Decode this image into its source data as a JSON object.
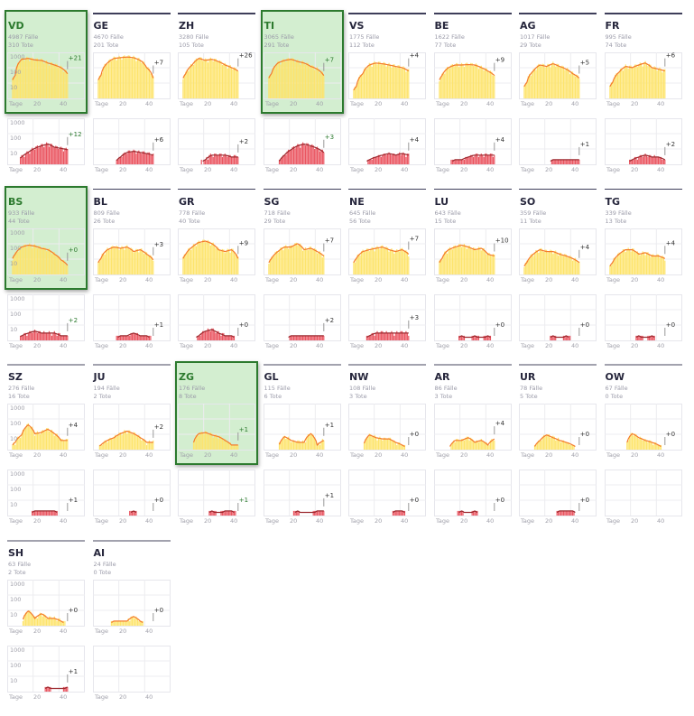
{
  "labels": {
    "x_axis": "Tage",
    "x_ticks": [
      "20",
      "40"
    ],
    "y_ticks": [
      "1000",
      "100",
      "10"
    ]
  },
  "colors": {
    "case_bar": "#fde46c",
    "case_line": "#f47a2c",
    "death_bar": "#ea5560",
    "death_line": "#9c2b30",
    "highlight_bg": "#d3eed0",
    "highlight_border": "#2c7a2e"
  },
  "chart_data": {
    "type": "bar",
    "x_axis": {
      "label": "Tage",
      "ticks": [
        20,
        40
      ]
    },
    "y_axis": {
      "scale": "log",
      "ticks": [
        10,
        100,
        1000
      ]
    },
    "sample_days": [
      4,
      9,
      14,
      19,
      24,
      29,
      34,
      39,
      44
    ],
    "cantons": [
      {
        "code": "VD",
        "cases_total": "4987 Fälle",
        "deaths_total": "310 Tote",
        "highlight": true,
        "cases_delta": "+21",
        "deaths_delta": "+12",
        "cases": [
          30,
          350,
          400,
          320,
          300,
          200,
          150,
          100,
          40
        ],
        "deaths": [
          0,
          2,
          5,
          10,
          15,
          20,
          12,
          10,
          8
        ]
      },
      {
        "code": "GE",
        "cases_total": "4670 Fälle",
        "deaths_total": "201 Tote",
        "cases_delta": "+7",
        "deaths_delta": "+6",
        "cases": [
          30,
          200,
          400,
          450,
          500,
          450,
          300,
          100,
          20
        ],
        "deaths": [
          0,
          0,
          0,
          2,
          5,
          6,
          5,
          4,
          3
        ]
      },
      {
        "code": "ZH",
        "cases_total": "3280 Fälle",
        "deaths_total": "105 Tote",
        "cases_delta": "+26",
        "deaths_delta": "+2",
        "cases": [
          40,
          150,
          400,
          300,
          350,
          250,
          150,
          100,
          60
        ],
        "deaths": [
          0,
          0,
          0,
          1,
          3,
          3,
          3,
          2,
          2
        ]
      },
      {
        "code": "TI",
        "cases_total": "3065 Fälle",
        "deaths_total": "291 Tote",
        "highlight": true,
        "cases_delta": "+7",
        "deaths_delta": "+3",
        "cases": [
          40,
          200,
          300,
          350,
          250,
          200,
          120,
          80,
          30
        ],
        "deaths": [
          0,
          0,
          3,
          8,
          15,
          20,
          15,
          10,
          5
        ]
      },
      {
        "code": "VS",
        "cases_total": "1775 Fälle",
        "deaths_total": "112 Tote",
        "cases_delta": "+4",
        "deaths_delta": "+4",
        "cases": [
          5,
          40,
          150,
          200,
          180,
          150,
          120,
          100,
          60
        ],
        "deaths": [
          0,
          0,
          1,
          2,
          3,
          4,
          3,
          4,
          3
        ]
      },
      {
        "code": "BE",
        "cases_total": "1622 Fälle",
        "deaths_total": "77 Tote",
        "cases_delta": "+9",
        "deaths_delta": "+4",
        "cases": [
          30,
          100,
          150,
          150,
          160,
          150,
          100,
          60,
          30
        ],
        "deaths": [
          0,
          0,
          1,
          1,
          2,
          3,
          3,
          3,
          3
        ]
      },
      {
        "code": "AG",
        "cases_total": "1017 Fälle",
        "deaths_total": "29 Tote",
        "cases_delta": "+5",
        "deaths_delta": "+1",
        "cases": [
          10,
          60,
          150,
          120,
          180,
          120,
          80,
          40,
          20
        ],
        "deaths": [
          0,
          0,
          0,
          0,
          1,
          1,
          1,
          1,
          1
        ]
      },
      {
        "code": "FR",
        "cases_total": "995 Fälle",
        "deaths_total": "74 Tote",
        "cases_delta": "+6",
        "deaths_delta": "+2",
        "cases": [
          10,
          50,
          120,
          100,
          150,
          200,
          100,
          80,
          60
        ],
        "deaths": [
          0,
          0,
          0,
          1,
          2,
          3,
          2,
          2,
          1
        ]
      },
      {
        "code": "BS",
        "cases_total": "933 Fälle",
        "deaths_total": "44 Tote",
        "highlight": true,
        "cases_delta": "+0",
        "deaths_delta": "+2",
        "cases": [
          20,
          60,
          80,
          70,
          50,
          40,
          20,
          8,
          3
        ],
        "deaths": [
          0,
          1,
          2,
          3,
          2,
          2,
          2,
          1,
          1
        ]
      },
      {
        "code": "BL",
        "cases_total": "809 Fälle",
        "deaths_total": "26 Tote",
        "cases_delta": "+3",
        "deaths_delta": "+1",
        "cases": [
          10,
          40,
          60,
          50,
          60,
          30,
          40,
          20,
          8
        ],
        "deaths": [
          0,
          0,
          0,
          1,
          1,
          2,
          1,
          1,
          0
        ]
      },
      {
        "code": "GR",
        "cases_total": "778 Fälle",
        "deaths_total": "40 Tote",
        "cases_delta": "+9",
        "deaths_delta": "+0",
        "cases": [
          20,
          60,
          120,
          150,
          100,
          40,
          30,
          40,
          10
        ],
        "deaths": [
          0,
          0,
          1,
          3,
          4,
          2,
          1,
          1,
          0
        ]
      },
      {
        "code": "SG",
        "cases_total": "718 Fälle",
        "deaths_total": "29 Tote",
        "cases_delta": "+7",
        "deaths_delta": "+2",
        "cases": [
          10,
          30,
          60,
          60,
          100,
          40,
          50,
          30,
          15
        ],
        "deaths": [
          0,
          0,
          0,
          1,
          1,
          1,
          1,
          1,
          1
        ]
      },
      {
        "code": "NE",
        "cases_total": "645 Fälle",
        "deaths_total": "56 Tote",
        "cases_delta": "+7",
        "deaths_delta": "+3",
        "cases": [
          10,
          30,
          40,
          50,
          60,
          40,
          30,
          40,
          20
        ],
        "deaths": [
          0,
          0,
          1,
          2,
          2,
          2,
          2,
          2,
          2
        ]
      },
      {
        "code": "LU",
        "cases_total": "643 Fälle",
        "deaths_total": "15 Tote",
        "cases_delta": "+10",
        "deaths_delta": "+0",
        "cases": [
          10,
          40,
          60,
          80,
          60,
          40,
          50,
          20,
          15
        ],
        "deaths": [
          0,
          0,
          0,
          1,
          0,
          1,
          0,
          1,
          0
        ]
      },
      {
        "code": "SO",
        "cases_total": "359 Fälle",
        "deaths_total": "11 Tote",
        "cases_delta": "+4",
        "deaths_delta": "+0",
        "cases": [
          5,
          20,
          40,
          30,
          30,
          20,
          15,
          10,
          5
        ],
        "deaths": [
          0,
          0,
          0,
          0,
          1,
          0,
          1,
          0,
          0
        ]
      },
      {
        "code": "TG",
        "cases_total": "339 Fälle",
        "deaths_total": "13 Tote",
        "cases_delta": "+4",
        "deaths_delta": "+0",
        "cases": [
          5,
          20,
          40,
          40,
          20,
          25,
          15,
          15,
          10
        ],
        "deaths": [
          0,
          0,
          0,
          0,
          1,
          0,
          1,
          0,
          0
        ]
      },
      {
        "code": "SZ",
        "cases_total": "276 Fälle",
        "deaths_total": "16 Tote",
        "cases_delta": "+4",
        "deaths_delta": "+1",
        "cases": [
          2,
          8,
          40,
          10,
          12,
          20,
          10,
          3,
          3
        ],
        "deaths": [
          0,
          0,
          0,
          1,
          1,
          1,
          1,
          0,
          0
        ]
      },
      {
        "code": "JU",
        "cases_total": "194 Fälle",
        "deaths_total": "2 Tote",
        "cases_delta": "+2",
        "deaths_delta": "+0",
        "cases": [
          1,
          3,
          5,
          10,
          15,
          10,
          5,
          2,
          2
        ],
        "deaths": [
          0,
          0,
          0,
          0,
          0,
          1,
          0,
          0,
          0
        ]
      },
      {
        "code": "ZG",
        "cases_total": "176 Fälle",
        "deaths_total": "8 Tote",
        "highlight": true,
        "cases_delta": "+1",
        "deaths_delta": "+1",
        "cases": [
          0,
          0,
          10,
          12,
          8,
          6,
          3,
          1,
          1
        ],
        "deaths": [
          0,
          0,
          0,
          0,
          1,
          0,
          1,
          1,
          0
        ]
      },
      {
        "code": "GL",
        "cases_total": "115 Fälle",
        "deaths_total": "6 Tote",
        "cases_delta": "+1",
        "deaths_delta": "+1",
        "cases": [
          0,
          0,
          6,
          3,
          2,
          2,
          10,
          1,
          3
        ],
        "deaths": [
          0,
          0,
          0,
          0,
          1,
          0,
          0,
          1,
          1
        ]
      },
      {
        "code": "NW",
        "cases_total": "108 Fälle",
        "deaths_total": "3 Tote",
        "cases_delta": "+0",
        "deaths_delta": "+0",
        "cases": [
          0,
          0,
          8,
          5,
          4,
          4,
          2,
          1,
          0
        ],
        "deaths": [
          0,
          0,
          0,
          0,
          0,
          0,
          1,
          1,
          0
        ]
      },
      {
        "code": "AR",
        "cases_total": "86 Fälle",
        "deaths_total": "3 Tote",
        "cases_delta": "+4",
        "deaths_delta": "+0",
        "cases": [
          0,
          0,
          3,
          3,
          5,
          2,
          3,
          1,
          4
        ],
        "deaths": [
          0,
          0,
          0,
          1,
          0,
          1,
          0,
          0,
          0
        ]
      },
      {
        "code": "UR",
        "cases_total": "78 Fälle",
        "deaths_total": "5 Tote",
        "cases_delta": "+0",
        "deaths_delta": "+0",
        "cases": [
          0,
          0,
          3,
          8,
          5,
          3,
          2,
          1,
          0
        ],
        "deaths": [
          0,
          0,
          0,
          0,
          0,
          1,
          1,
          1,
          0
        ]
      },
      {
        "code": "OW",
        "cases_total": "67 Fälle",
        "deaths_total": "0 Tote",
        "cases_delta": "+0",
        "deaths_delta": "",
        "cases": [
          0,
          0,
          0,
          10,
          5,
          3,
          2,
          1,
          0
        ],
        "deaths": [
          0,
          0,
          0,
          0,
          0,
          0,
          0,
          0,
          0
        ]
      },
      {
        "code": "SH",
        "cases_total": "63 Fälle",
        "deaths_total": "2 Tote",
        "cases_delta": "+0",
        "deaths_delta": "+1",
        "cases": [
          0,
          0,
          8,
          2,
          5,
          2,
          2,
          1,
          0
        ],
        "deaths": [
          0,
          0,
          0,
          0,
          0,
          1,
          0,
          0,
          1
        ]
      },
      {
        "code": "AI",
        "cases_total": "24 Fälle",
        "deaths_total": "0 Tote",
        "cases_delta": "+0",
        "deaths_delta": "",
        "cases": [
          0,
          0,
          1,
          1,
          1,
          3,
          1,
          0,
          0
        ],
        "deaths": [
          0,
          0,
          0,
          0,
          0,
          0,
          0,
          0,
          0
        ]
      }
    ]
  }
}
